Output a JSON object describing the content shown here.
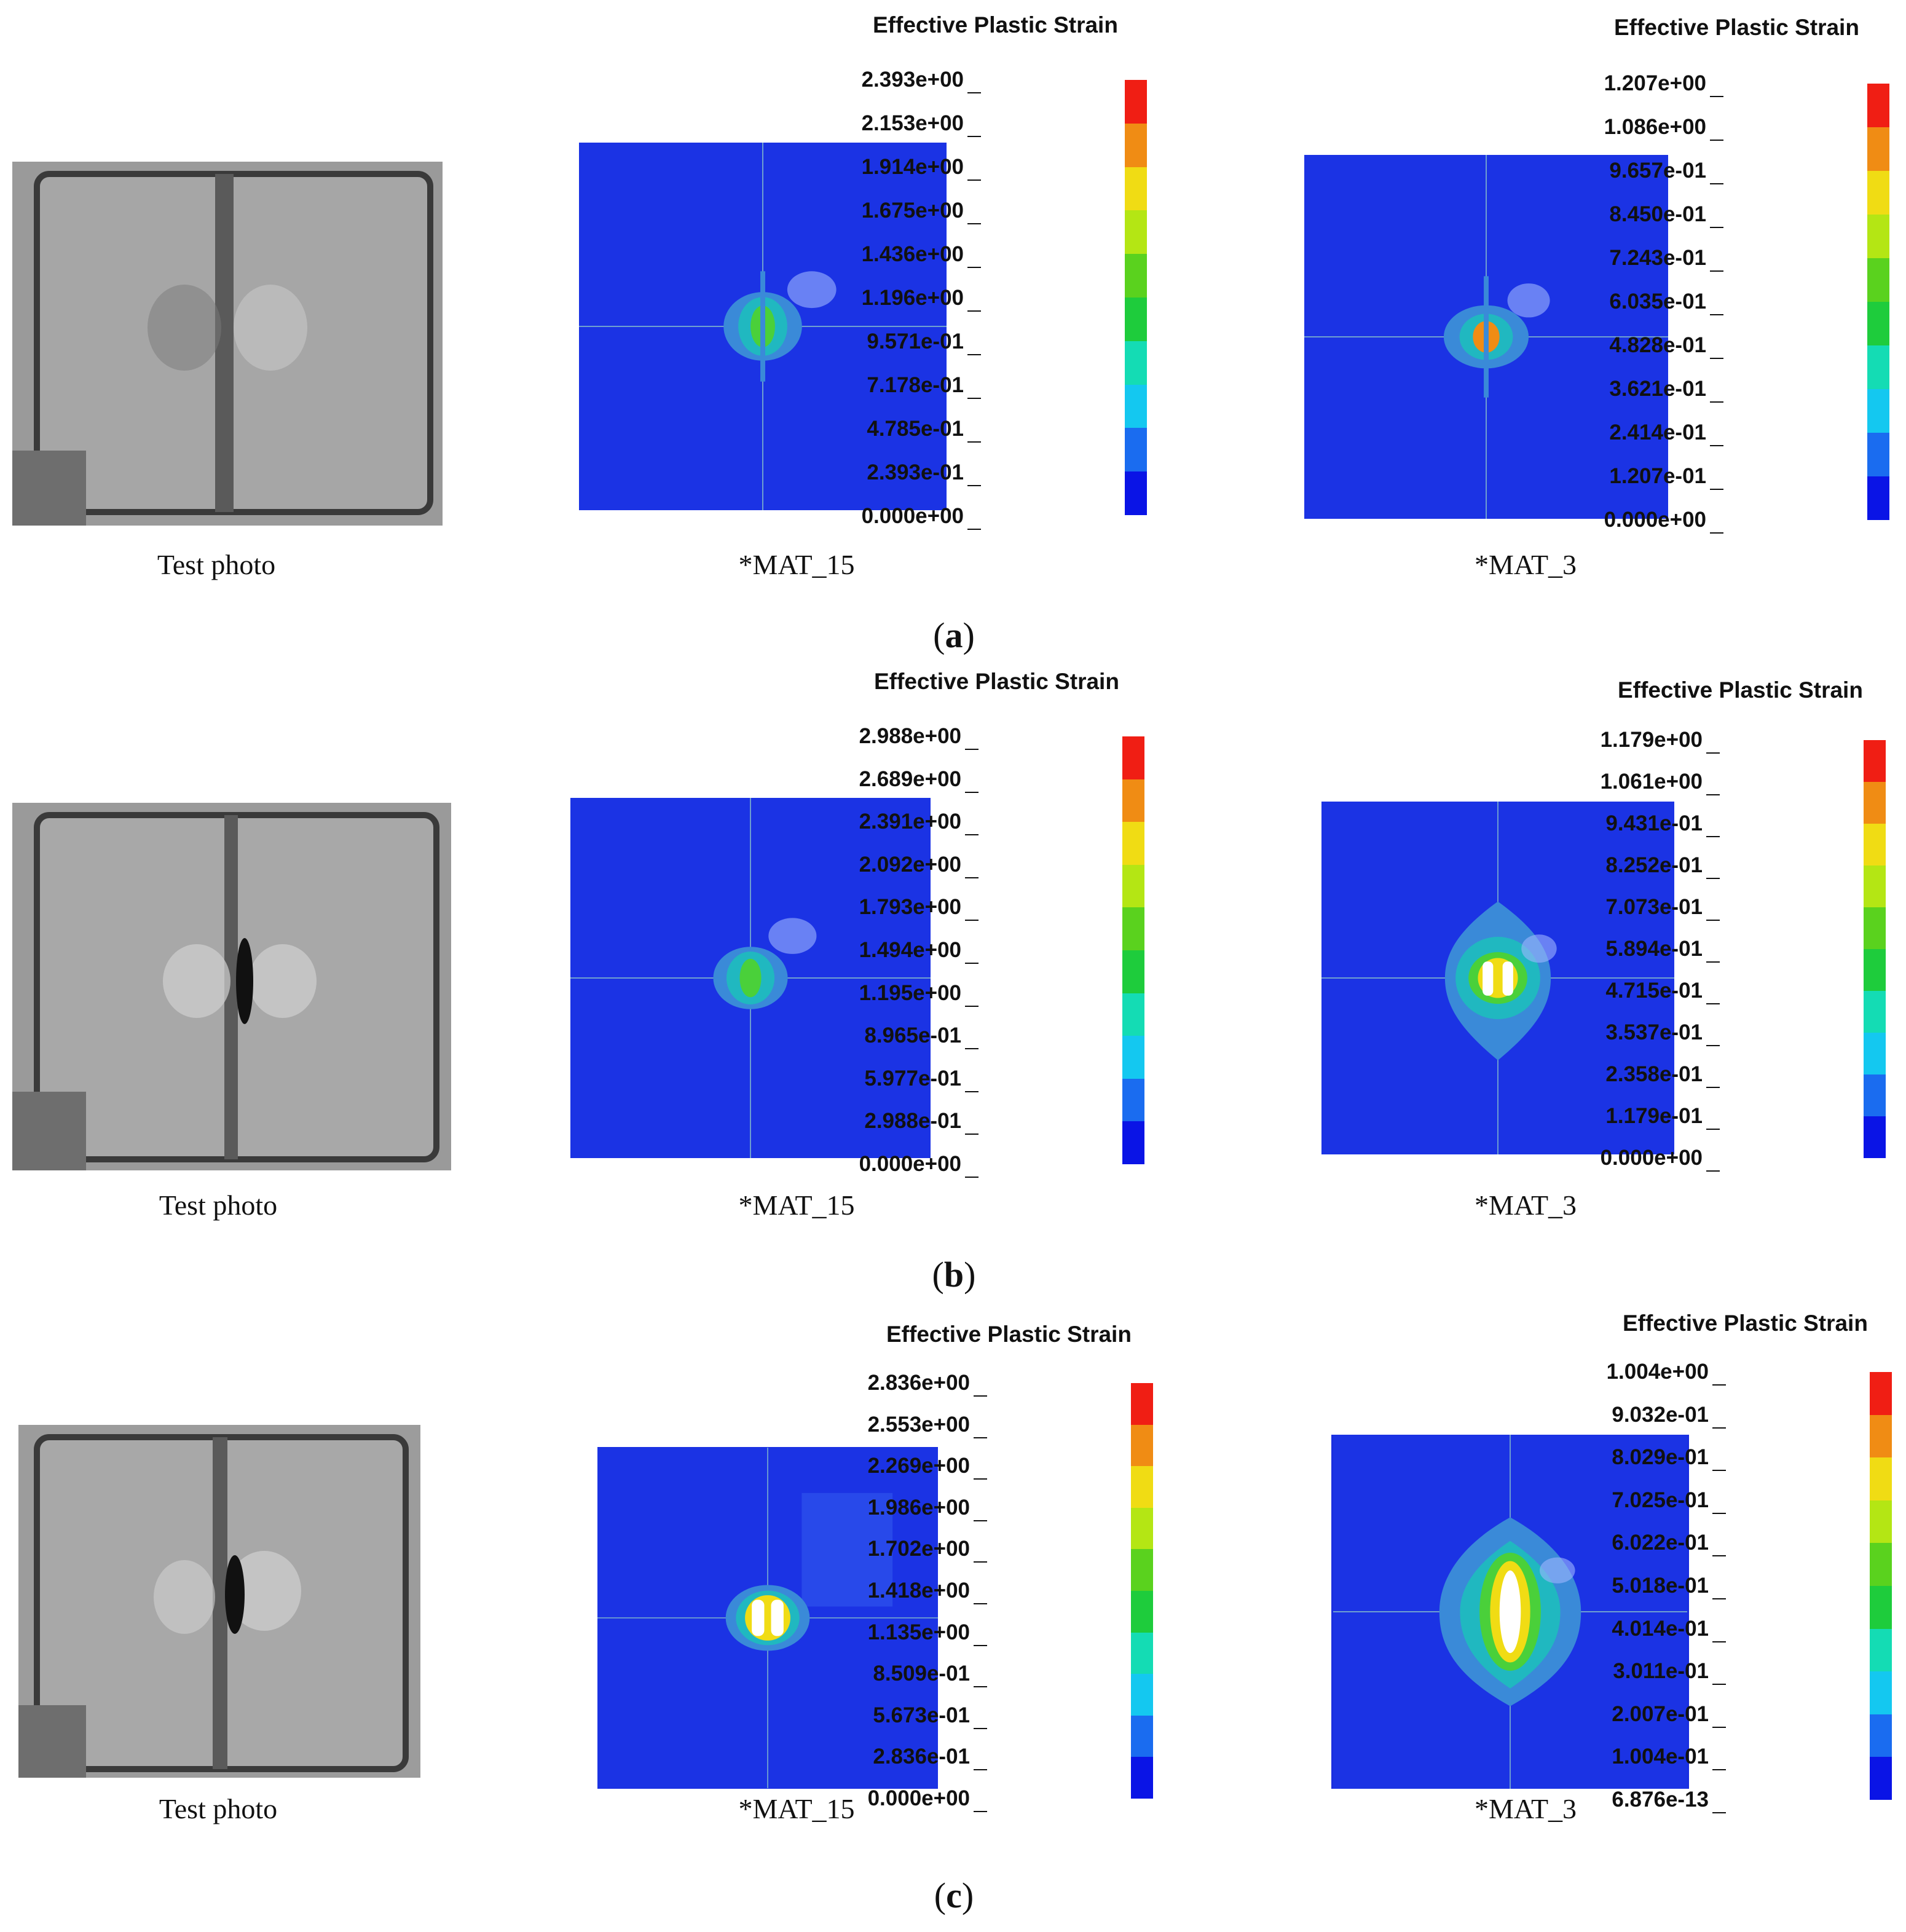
{
  "colors": {
    "colorbar": [
      "#0a14e6",
      "#1a6cf0",
      "#14c8f0",
      "#14dcb4",
      "#1ecc3c",
      "#5ad21e",
      "#b4e614",
      "#f0dc14",
      "#f08c14",
      "#f01e14"
    ]
  },
  "rows": [
    {
      "label": "(a)",
      "label_letter": "a",
      "photo_caption": "Test photo",
      "mat15": {
        "caption": "*MAT_15",
        "legend_title": "Effective Plastic Strain",
        "ticks": [
          "2.393e+00",
          "2.153e+00",
          "1.914e+00",
          "1.675e+00",
          "1.436e+00",
          "1.196e+00",
          "9.571e-01",
          "7.178e-01",
          "4.785e-01",
          "2.393e-01",
          "0.000e+00"
        ]
      },
      "mat3": {
        "caption": "*MAT_3",
        "legend_title": "Effective Plastic Strain",
        "ticks": [
          "1.207e+00",
          "1.086e+00",
          "9.657e-01",
          "8.450e-01",
          "7.243e-01",
          "6.035e-01",
          "4.828e-01",
          "3.621e-01",
          "2.414e-01",
          "1.207e-01",
          "0.000e+00"
        ]
      }
    },
    {
      "label": "(b)",
      "label_letter": "b",
      "photo_caption": "Test photo",
      "mat15": {
        "caption": "*MAT_15",
        "legend_title": "Effective Plastic Strain",
        "ticks": [
          "2.988e+00",
          "2.689e+00",
          "2.391e+00",
          "2.092e+00",
          "1.793e+00",
          "1.494e+00",
          "1.195e+00",
          "8.965e-01",
          "5.977e-01",
          "2.988e-01",
          "0.000e+00"
        ]
      },
      "mat3": {
        "caption": "*MAT_3",
        "legend_title": "Effective Plastic Strain",
        "ticks": [
          "1.179e+00",
          "1.061e+00",
          "9.431e-01",
          "8.252e-01",
          "7.073e-01",
          "5.894e-01",
          "4.715e-01",
          "3.537e-01",
          "2.358e-01",
          "1.179e-01",
          "0.000e+00"
        ]
      }
    },
    {
      "label": "(c)",
      "label_letter": "c",
      "photo_caption": "Test photo",
      "mat15": {
        "caption": "*MAT_15",
        "legend_title": "Effective Plastic Strain",
        "ticks": [
          "2.836e+00",
          "2.553e+00",
          "2.269e+00",
          "1.986e+00",
          "1.702e+00",
          "1.418e+00",
          "1.135e+00",
          "8.509e-01",
          "5.673e-01",
          "2.836e-01",
          "0.000e+00"
        ]
      },
      "mat3": {
        "caption": "*MAT_3",
        "legend_title": "Effective Plastic Strain",
        "ticks": [
          "1.004e+00",
          "9.032e-01",
          "8.029e-01",
          "7.025e-01",
          "6.022e-01",
          "5.018e-01",
          "4.014e-01",
          "3.011e-01",
          "2.007e-01",
          "1.004e-01",
          "6.876e-13"
        ]
      }
    }
  ]
}
